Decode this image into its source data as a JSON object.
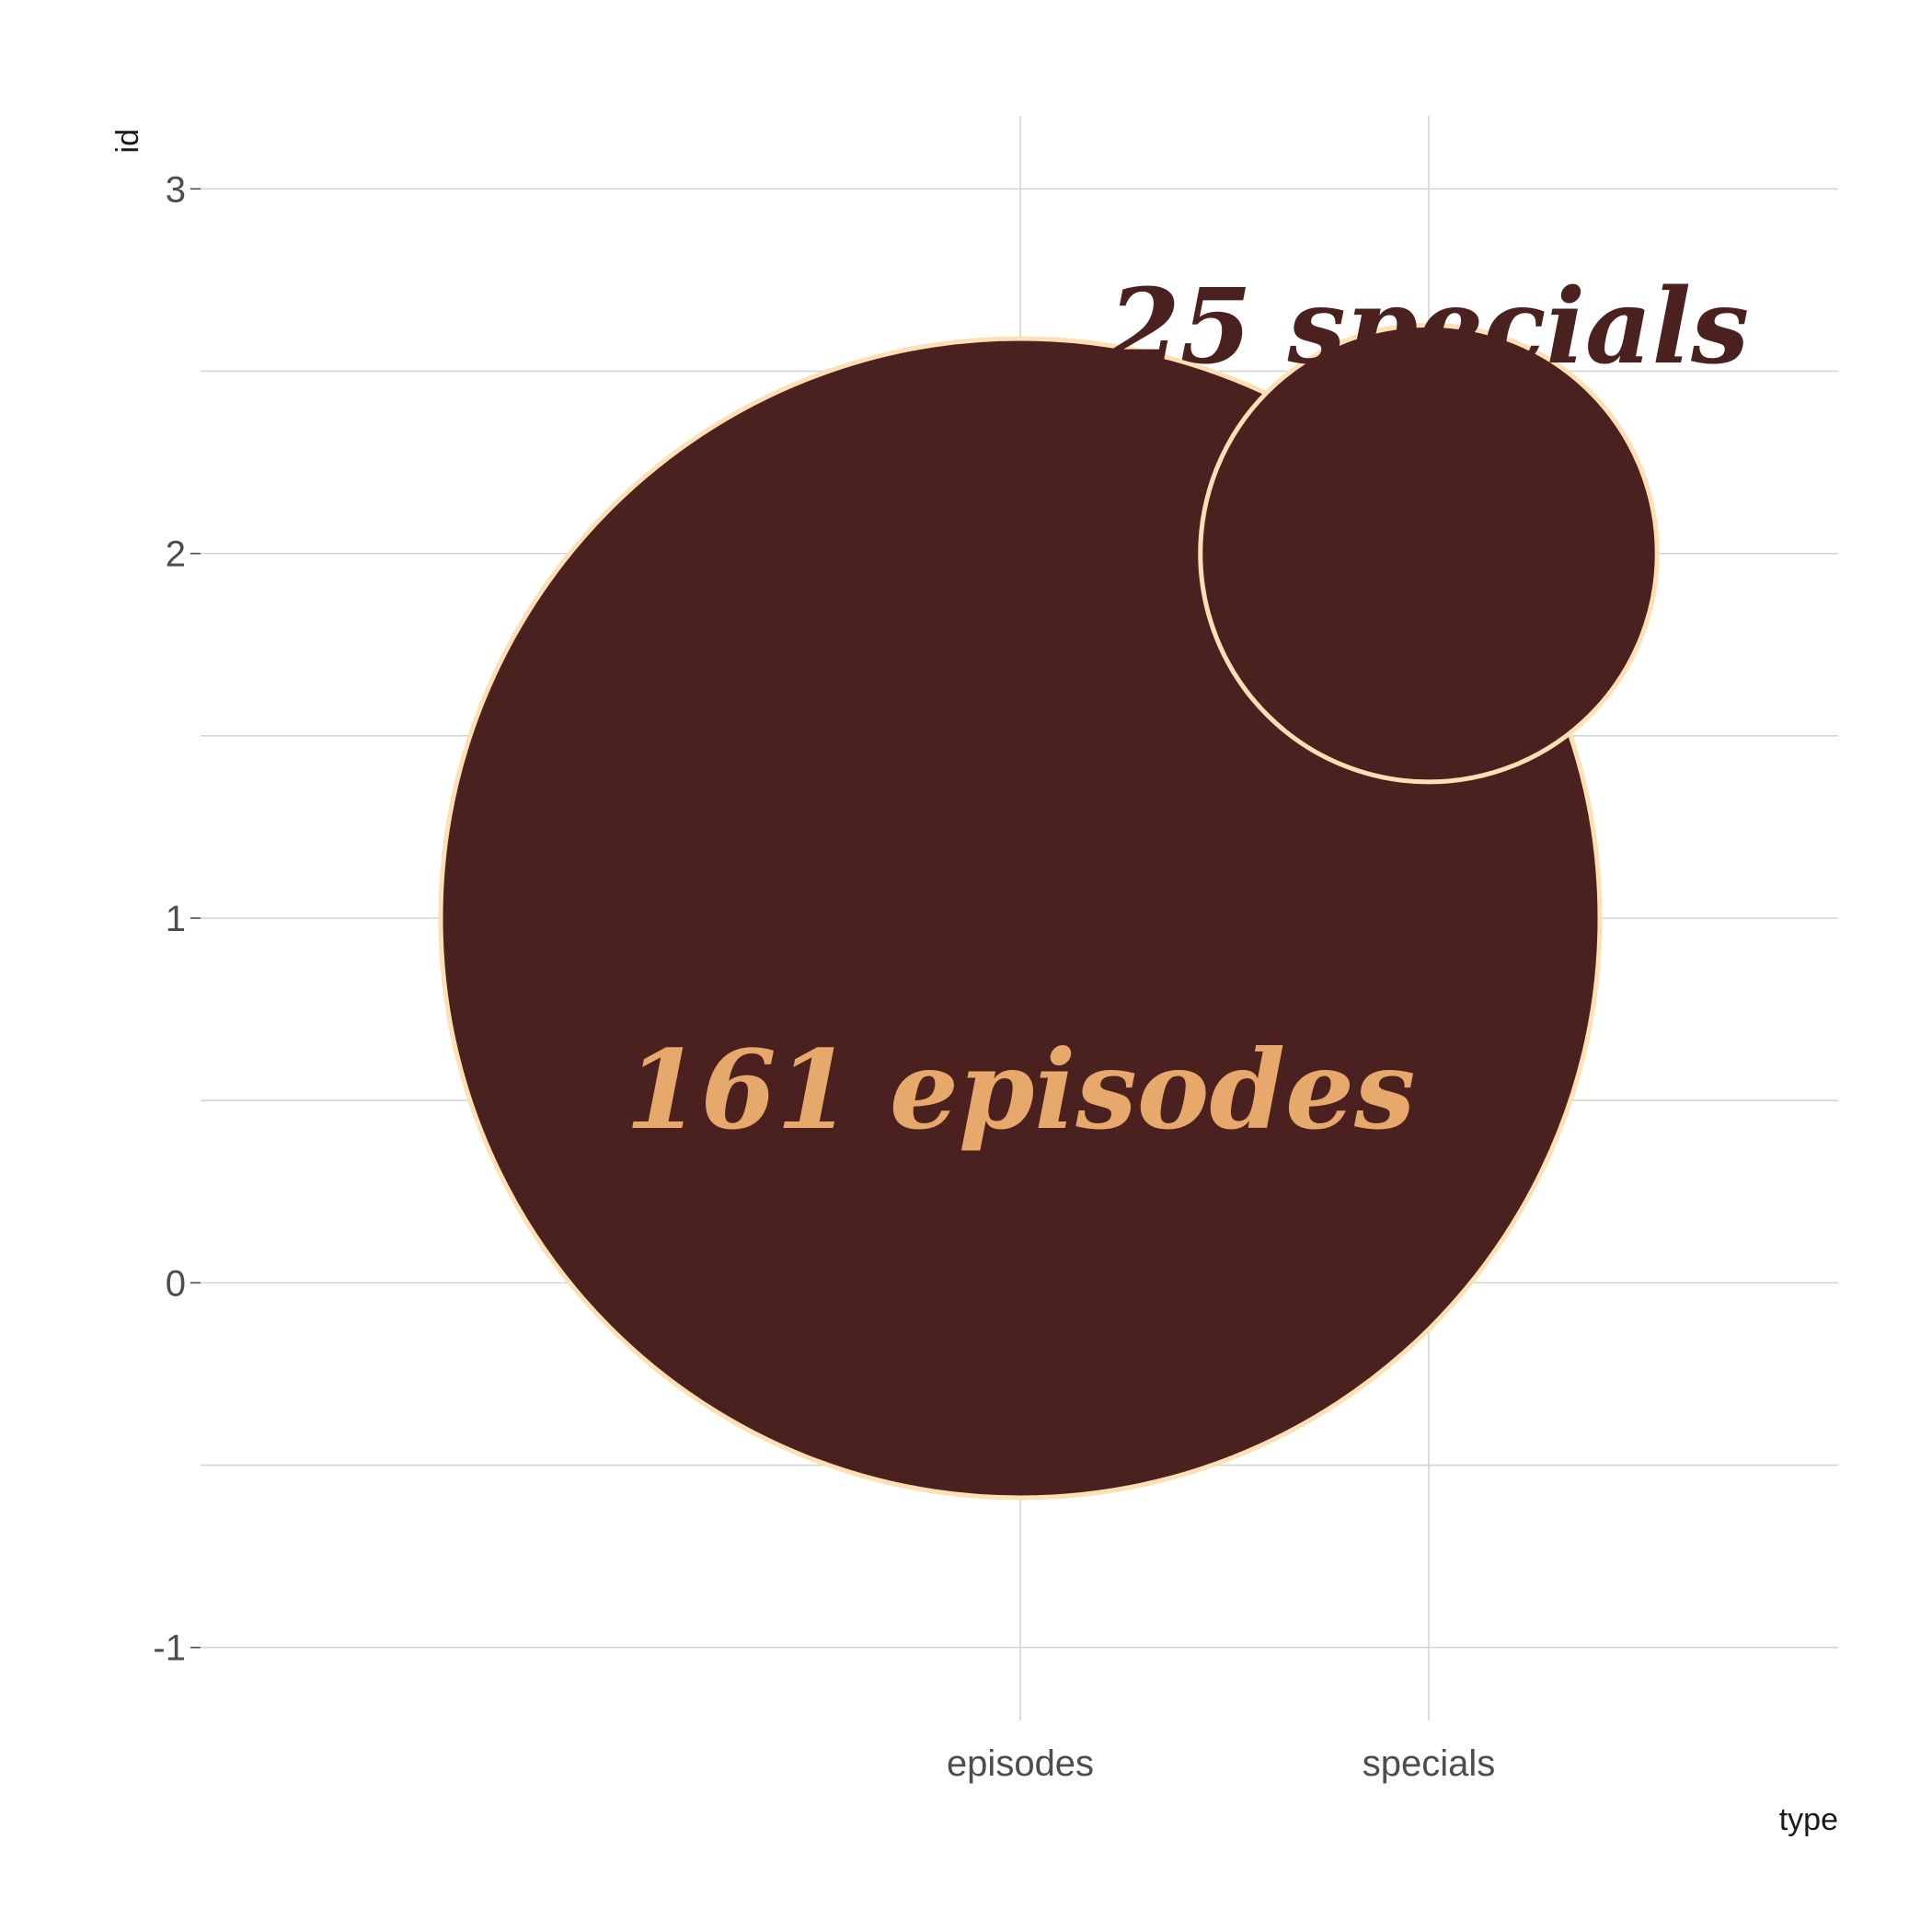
{
  "chart_data": {
    "type": "scatter",
    "title": "",
    "xlabel": "type",
    "ylabel": "id",
    "categories": [
      "episodes",
      "specials"
    ],
    "y_ticks": [
      -1,
      0,
      1,
      2,
      3
    ],
    "ylim": [
      -1.2,
      3.2
    ],
    "grid": true,
    "points": [
      {
        "x": "episodes",
        "y": 1,
        "value": 161
      },
      {
        "x": "specials",
        "y": 2,
        "value": 25
      }
    ],
    "annotations": [
      {
        "text": "161 episodes",
        "x": "episodes",
        "y": 0.5,
        "color": "#E7A86B"
      },
      {
        "text": "25 specials",
        "x": "specials",
        "y": 2.6,
        "color": "#4B2120"
      }
    ],
    "colors": {
      "point_fill": "#4B2120",
      "point_stroke": "#FFE0B5"
    }
  }
}
